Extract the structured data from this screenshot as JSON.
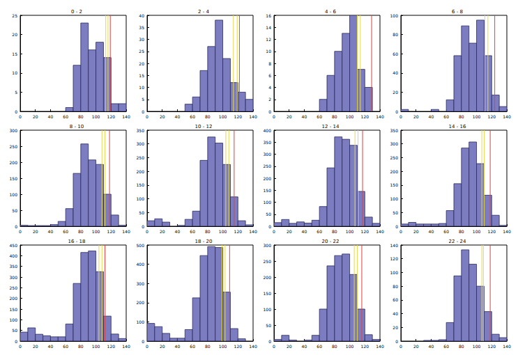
{
  "chart_data": [
    {
      "type": "histogram",
      "title": "0 - 2",
      "color": "#7b7dc0",
      "bins": [
        0,
        10,
        20,
        30,
        40,
        50,
        60,
        70,
        80,
        90,
        100,
        110,
        120,
        130,
        140
      ],
      "counts": [
        0,
        0,
        0,
        0,
        0,
        0,
        1,
        12,
        23,
        16,
        18,
        14,
        2,
        2
      ],
      "xlim": [
        0,
        140
      ],
      "xticks": [
        0,
        20,
        40,
        60,
        80,
        100,
        120,
        140
      ],
      "ylim": [
        0,
        25
      ],
      "yticks": [
        0,
        5,
        10,
        15,
        20,
        25
      ],
      "vlines": [
        {
          "value": 113,
          "color": "#e8d84a"
        },
        {
          "value": 116,
          "color": "#e8d84a"
        },
        {
          "value": 119,
          "color": "#e0413b"
        }
      ]
    },
    {
      "type": "histogram",
      "title": "2 - 4",
      "color": "#7b7dc0",
      "bins": [
        0,
        10,
        20,
        30,
        40,
        50,
        60,
        70,
        80,
        90,
        100,
        110,
        120,
        130,
        140
      ],
      "counts": [
        0,
        0,
        0,
        0,
        0,
        3,
        6,
        17,
        27,
        38,
        22,
        12,
        8,
        5
      ],
      "xlim": [
        0,
        140
      ],
      "xticks": [
        0,
        20,
        40,
        60,
        80,
        100,
        120,
        140
      ],
      "ylim": [
        0,
        40
      ],
      "yticks": [
        0,
        5,
        10,
        15,
        20,
        25,
        30,
        35,
        40
      ],
      "vlines": [
        {
          "value": 114,
          "color": "#e8d84a"
        },
        {
          "value": 119,
          "color": "#e8d84a"
        },
        {
          "value": 122,
          "color": "#e0413b"
        }
      ]
    },
    {
      "type": "histogram",
      "title": "4 - 6",
      "color": "#7b7dc0",
      "bins": [
        0,
        10,
        20,
        30,
        40,
        50,
        60,
        70,
        80,
        90,
        100,
        110,
        120,
        130,
        140
      ],
      "counts": [
        0,
        0,
        0,
        0,
        0,
        0,
        2,
        6,
        10,
        13,
        16,
        7,
        4,
        0
      ],
      "xlim": [
        0,
        140
      ],
      "xticks": [
        0,
        20,
        40,
        60,
        80,
        100,
        120,
        140
      ],
      "ylim": [
        0,
        16
      ],
      "yticks": [
        0,
        2,
        4,
        6,
        8,
        10,
        12,
        14,
        16
      ],
      "vlines": [
        {
          "value": 110,
          "color": "#e8d84a"
        },
        {
          "value": 114,
          "color": "#e8d84a"
        },
        {
          "value": 129,
          "color": "#e0413b"
        }
      ]
    },
    {
      "type": "histogram",
      "title": "6 - 8",
      "color": "#7b7dc0",
      "bins": [
        0,
        10,
        20,
        30,
        40,
        50,
        60,
        70,
        80,
        90,
        100,
        110,
        120,
        130,
        140
      ],
      "counts": [
        2,
        0,
        0,
        0,
        2,
        0,
        12,
        58,
        89,
        71,
        95,
        58,
        17,
        5
      ],
      "xlim": [
        0,
        140
      ],
      "xticks": [
        0,
        20,
        40,
        60,
        80,
        100,
        120,
        140
      ],
      "ylim": [
        0,
        100
      ],
      "yticks": [
        0,
        20,
        40,
        60,
        80,
        100
      ],
      "vlines": [
        {
          "value": 111,
          "color": "#e8d84a"
        },
        {
          "value": 115,
          "color": "#e8d84a"
        },
        {
          "value": 124,
          "color": "#e0413b"
        }
      ]
    },
    {
      "type": "histogram",
      "title": "8 - 10",
      "color": "#7b7dc0",
      "bins": [
        0,
        10,
        20,
        30,
        40,
        50,
        60,
        70,
        80,
        90,
        100,
        110,
        120,
        130,
        140
      ],
      "counts": [
        3,
        2,
        2,
        2,
        5,
        15,
        55,
        165,
        257,
        207,
        193,
        100,
        35,
        3
      ],
      "xlim": [
        0,
        140
      ],
      "xticks": [
        0,
        20,
        40,
        60,
        80,
        100,
        120,
        140
      ],
      "ylim": [
        0,
        300
      ],
      "yticks": [
        0,
        50,
        100,
        150,
        200,
        250,
        300
      ],
      "vlines": [
        {
          "value": 108,
          "color": "#e8d84a"
        },
        {
          "value": 112,
          "color": "#e8d84a"
        },
        {
          "value": 118,
          "color": "#e0413b"
        }
      ]
    },
    {
      "type": "histogram",
      "title": "10 - 12",
      "color": "#7b7dc0",
      "bins": [
        0,
        10,
        20,
        30,
        40,
        50,
        60,
        70,
        80,
        90,
        100,
        110,
        120,
        130,
        140
      ],
      "counts": [
        20,
        27,
        15,
        0,
        3,
        25,
        55,
        240,
        325,
        303,
        225,
        107,
        20,
        5
      ],
      "xlim": [
        0,
        140
      ],
      "xticks": [
        0,
        20,
        40,
        60,
        80,
        100,
        120,
        140
      ],
      "ylim": [
        0,
        350
      ],
      "yticks": [
        0,
        50,
        100,
        150,
        200,
        250,
        300,
        350
      ],
      "vlines": [
        {
          "value": 104,
          "color": "#e8d84a"
        },
        {
          "value": 108,
          "color": "#e8d84a"
        },
        {
          "value": 115,
          "color": "#e0413b"
        }
      ]
    },
    {
      "type": "histogram",
      "title": "12 - 14",
      "color": "#7b7dc0",
      "bins": [
        0,
        10,
        20,
        30,
        40,
        50,
        60,
        70,
        80,
        90,
        100,
        110,
        120,
        130,
        140
      ],
      "counts": [
        15,
        28,
        12,
        18,
        13,
        25,
        82,
        243,
        372,
        362,
        337,
        145,
        38,
        12
      ],
      "xlim": [
        0,
        140
      ],
      "xticks": [
        0,
        20,
        40,
        60,
        80,
        100,
        120,
        140
      ],
      "ylim": [
        0,
        400
      ],
      "yticks": [
        0,
        50,
        100,
        150,
        200,
        250,
        300,
        350,
        400
      ],
      "vlines": [
        {
          "value": 107,
          "color": "#e8d84a"
        },
        {
          "value": 111,
          "color": "#e8d84a"
        },
        {
          "value": 117,
          "color": "#e0413b"
        }
      ]
    },
    {
      "type": "histogram",
      "title": "14 - 16",
      "color": "#7b7dc0",
      "bins": [
        0,
        10,
        20,
        30,
        40,
        50,
        60,
        70,
        80,
        90,
        100,
        110,
        120,
        130,
        140
      ],
      "counts": [
        8,
        14,
        8,
        8,
        8,
        10,
        57,
        155,
        285,
        307,
        228,
        113,
        40,
        3
      ],
      "xlim": [
        0,
        140
      ],
      "xticks": [
        0,
        20,
        40,
        60,
        80,
        100,
        120,
        140
      ],
      "ylim": [
        0,
        350
      ],
      "yticks": [
        0,
        50,
        100,
        150,
        200,
        250,
        300,
        350
      ],
      "vlines": [
        {
          "value": 107,
          "color": "#e8d84a"
        },
        {
          "value": 110,
          "color": "#e8d84a"
        },
        {
          "value": 118,
          "color": "#e0413b"
        }
      ]
    },
    {
      "type": "histogram",
      "title": "16 - 18",
      "color": "#7b7dc0",
      "bins": [
        0,
        10,
        20,
        30,
        40,
        50,
        60,
        70,
        80,
        90,
        100,
        110,
        120,
        130,
        140
      ],
      "counts": [
        42,
        62,
        32,
        25,
        20,
        20,
        80,
        270,
        415,
        422,
        325,
        117,
        33,
        12
      ],
      "xlim": [
        0,
        140
      ],
      "xticks": [
        0,
        20,
        40,
        60,
        80,
        100,
        120,
        140
      ],
      "ylim": [
        0,
        450
      ],
      "yticks": [
        0,
        50,
        100,
        150,
        200,
        250,
        300,
        350,
        400,
        450
      ],
      "vlines": [
        {
          "value": 104,
          "color": "#e8d84a"
        },
        {
          "value": 108,
          "color": "#e8d84a"
        },
        {
          "value": 112,
          "color": "#e0413b"
        }
      ]
    },
    {
      "type": "histogram",
      "title": "18 - 20",
      "color": "#7b7dc0",
      "bins": [
        0,
        10,
        20,
        30,
        40,
        50,
        60,
        70,
        80,
        90,
        100,
        110,
        120,
        130,
        140
      ],
      "counts": [
        92,
        75,
        40,
        15,
        15,
        60,
        225,
        445,
        492,
        487,
        255,
        65,
        12,
        0
      ],
      "xlim": [
        0,
        140
      ],
      "xticks": [
        0,
        20,
        40,
        60,
        80,
        100,
        120,
        140
      ],
      "ylim": [
        0,
        500
      ],
      "yticks": [
        0,
        100,
        200,
        300,
        400,
        500
      ],
      "vlines": [
        {
          "value": 99,
          "color": "#e8d84a"
        },
        {
          "value": 103,
          "color": "#e8d84a"
        },
        {
          "value": 109,
          "color": "#e0413b"
        }
      ]
    },
    {
      "type": "histogram",
      "title": "20 - 22",
      "color": "#7b7dc0",
      "bins": [
        0,
        10,
        20,
        30,
        40,
        50,
        60,
        70,
        80,
        90,
        100,
        110,
        120,
        130,
        140
      ],
      "counts": [
        5,
        18,
        3,
        0,
        3,
        18,
        100,
        235,
        267,
        272,
        208,
        100,
        20,
        5
      ],
      "xlim": [
        0,
        140
      ],
      "xticks": [
        0,
        20,
        40,
        60,
        80,
        100,
        120,
        140
      ],
      "ylim": [
        0,
        300
      ],
      "yticks": [
        0,
        50,
        100,
        150,
        200,
        250,
        300
      ],
      "vlines": [
        {
          "value": 106,
          "color": "#e8d84a"
        },
        {
          "value": 110,
          "color": "#e8d84a"
        },
        {
          "value": 116,
          "color": "#e0413b"
        }
      ]
    },
    {
      "type": "histogram",
      "title": "22 - 24",
      "color": "#7b7dc0",
      "bins": [
        0,
        10,
        20,
        30,
        40,
        50,
        60,
        70,
        80,
        90,
        100,
        110,
        120,
        130,
        140
      ],
      "counts": [
        0,
        0,
        0,
        1,
        1,
        2,
        27,
        95,
        133,
        112,
        80,
        43,
        10,
        5
      ],
      "xlim": [
        0,
        140
      ],
      "xticks": [
        0,
        20,
        40,
        60,
        80,
        100,
        120,
        140
      ],
      "ylim": [
        0,
        140
      ],
      "yticks": [
        0,
        20,
        40,
        60,
        80,
        100,
        120,
        140
      ],
      "vlines": [
        {
          "value": 107,
          "color": "#e8d84a"
        },
        {
          "value": 109,
          "color": "#e8d84a"
        },
        {
          "value": 118,
          "color": "#e0413b"
        }
      ]
    }
  ]
}
